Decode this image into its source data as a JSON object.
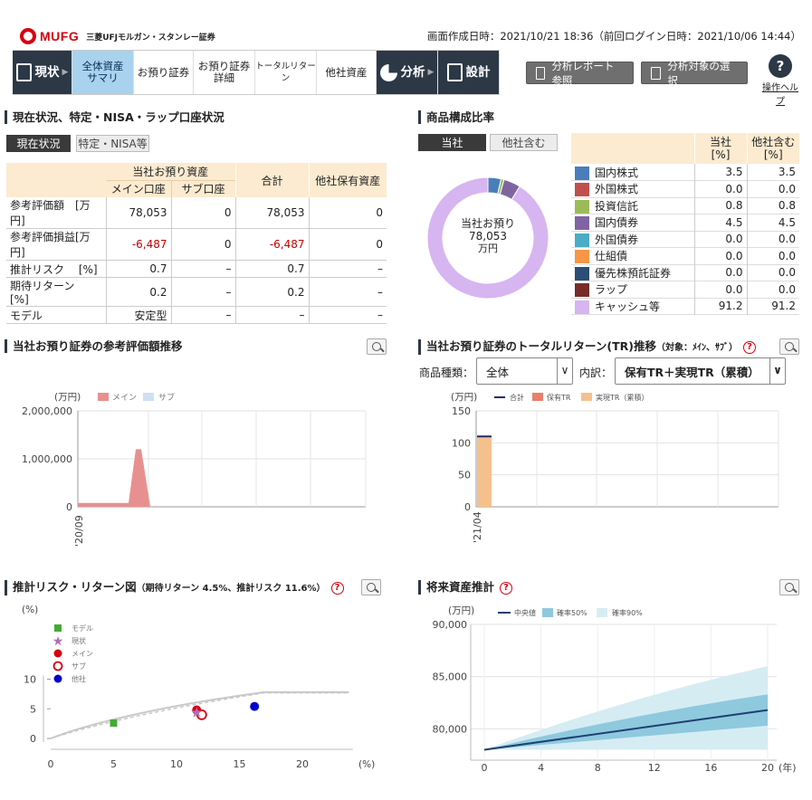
{
  "header": {
    "brand": "MUFG",
    "company": "三菱UFJモルガン・スタンレー証券",
    "created_text": "画面作成日時：2021/10/21 18:36（前回ログイン日時：2021/10/06 14:44）"
  },
  "nav": {
    "items": [
      {
        "label": "現状",
        "icon": "clipboard-icon"
      },
      {
        "label": "全体資産サマリ"
      },
      {
        "label": "お預り証券"
      },
      {
        "label": "お預り証券詳細"
      },
      {
        "label": "トータルリターン"
      },
      {
        "label": "他社資産"
      },
      {
        "label": "分析",
        "icon": "pie-chart-icon"
      },
      {
        "label": "設計",
        "icon": "document-icon"
      }
    ],
    "report_button": "分析レポート参照",
    "target_button": "分析対象の選択",
    "help_label": "操作ヘルプ",
    "help_symbol": "?"
  },
  "status": {
    "title": "現在状況、特定・NISA・ラップ口座状況",
    "tabs": [
      "現在状況",
      "特定・NISA等"
    ],
    "head_group": "当社お預り資産",
    "head_main": "メイン口座",
    "head_sub": "サブ口座",
    "head_total": "合計",
    "head_other": "他社保有資産",
    "rows": [
      {
        "label": "参考評価額　[万円]",
        "main": "78,053",
        "sub": "0",
        "total": "78,053",
        "other": "0"
      },
      {
        "label": "参考評価損益[万円]",
        "main": "-6,487",
        "sub": "0",
        "total": "-6,487",
        "other": "0"
      },
      {
        "label": "推計リスク　 [%]",
        "main": "0.7",
        "sub": "–",
        "total": "0.7",
        "other": "–"
      },
      {
        "label": "期待リターン　[%]",
        "main": "0.2",
        "sub": "–",
        "total": "0.2",
        "other": "–"
      },
      {
        "label": "モデル",
        "main": "安定型",
        "sub": "–",
        "total": "–",
        "other": "–"
      }
    ]
  },
  "composition": {
    "title": "商品構成比率",
    "tabs": [
      "当社",
      "他社含む"
    ],
    "center_line1": "当社お預り",
    "center_line2": "78,053",
    "center_line3": "万円",
    "head_self": "当社\n[%]",
    "head_all": "他社含む\n[%]",
    "rows": [
      {
        "name": "国内株式",
        "color": "#4a7ebb",
        "self": "3.5",
        "all": "3.5"
      },
      {
        "name": "外国株式",
        "color": "#c0504d",
        "self": "0.0",
        "all": "0.0"
      },
      {
        "name": "投資信託",
        "color": "#9bbb59",
        "self": "0.8",
        "all": "0.8"
      },
      {
        "name": "国内債券",
        "color": "#8064a2",
        "self": "4.5",
        "all": "4.5"
      },
      {
        "name": "外国債券",
        "color": "#4bacc6",
        "self": "0.0",
        "all": "0.0"
      },
      {
        "name": "仕組債",
        "color": "#f79646",
        "self": "0.0",
        "all": "0.0"
      },
      {
        "name": "優先株預託証券",
        "color": "#2c4d75",
        "self": "0.0",
        "all": "0.0"
      },
      {
        "name": "ラップ",
        "color": "#772c2a",
        "self": "0.0",
        "all": "0.0"
      },
      {
        "name": "キャッシュ等",
        "color": "#d7b5f0",
        "self": "91.2",
        "all": "91.2"
      }
    ]
  },
  "value_trend": {
    "title": "当社お預り証券の参考評価額推移",
    "unit": "(万円)",
    "legend_main": "メイン",
    "legend_sub": "サブ",
    "color_main": "#e89090",
    "color_sub": "#cfe0f3"
  },
  "tr_trend": {
    "title": "当社お預り証券のトータルリターン(TR)推移",
    "title_note": "（対象：ﾒｲﾝ、ｻﾌﾞ）",
    "product_label": "商品種類：",
    "product_value": "全体",
    "breakdown_label": "内訳：",
    "breakdown_value": "保有TR＋実現TR（累積）",
    "unit": "(万円)",
    "legend": [
      "合計",
      "保有TR",
      "実現TR（累積）"
    ]
  },
  "risk_return": {
    "title": "推計リスク・リターン図",
    "title_note": "（期待リターン 4.5%、推計リスク 11.6%）",
    "y_unit": "(%)",
    "x_unit": "(%)",
    "legend": [
      "モデル",
      "現状",
      "メイン",
      "サブ",
      "他社"
    ]
  },
  "future": {
    "title": "将来資産推計",
    "unit": "(万円)",
    "x_unit": "(年)",
    "legend": [
      "中央値",
      "確率50%",
      "確率90%"
    ]
  },
  "chart_data": [
    {
      "type": "pie",
      "categories": [
        "国内株式",
        "外国株式",
        "投資信託",
        "国内債券",
        "外国債券",
        "仕組債",
        "優先株預託証券",
        "ラップ",
        "キャッシュ等"
      ],
      "values": [
        3.5,
        0.0,
        0.8,
        4.5,
        0.0,
        0.0,
        0.0,
        0.0,
        91.2
      ],
      "colors": [
        "#4a7ebb",
        "#c0504d",
        "#9bbb59",
        "#8064a2",
        "#4bacc6",
        "#f79646",
        "#2c4d75",
        "#772c2a",
        "#d7b5f0"
      ]
    },
    {
      "type": "area",
      "ylabel": "(万円)",
      "ylim": [
        0,
        2000000
      ],
      "yticks": [
        "2,000,000",
        "1,000,000",
        "0"
      ],
      "ytick_values": [
        2000000,
        1000000,
        0
      ],
      "x_tick_labels": [
        "'20/09"
      ],
      "series": [
        {
          "name": "メイン",
          "x": [
            0,
            1,
            2,
            3,
            4,
            5
          ],
          "values": [
            80000,
            80000,
            80000,
            1200000,
            1200000,
            0
          ]
        }
      ]
    },
    {
      "type": "bar",
      "ylabel": "(万円)",
      "ylim": [
        0,
        150
      ],
      "yticks": [
        "150",
        "100",
        "50",
        "0"
      ],
      "ytick_values": [
        150,
        100,
        50,
        0
      ],
      "categories": [
        "'21/04"
      ],
      "series": [
        {
          "name": "合計",
          "values": [
            110
          ]
        },
        {
          "name": "保有TR",
          "values": [
            0
          ]
        },
        {
          "name": "実現TR（累積）",
          "values": [
            110
          ]
        }
      ]
    },
    {
      "type": "scatter",
      "xlim": [
        0,
        25
      ],
      "ylim": [
        0,
        10
      ],
      "xticks": [
        "0",
        "5",
        "10",
        "15",
        "20"
      ],
      "xtick_values": [
        0,
        5,
        10,
        15,
        20
      ],
      "yticks": [
        "10",
        "5",
        "0"
      ],
      "ytick_values": [
        10,
        5,
        0
      ],
      "series": [
        {
          "name": "モデル",
          "x": [
            5.0
          ],
          "y": [
            2.6
          ]
        },
        {
          "name": "現状",
          "x": [
            11.6
          ],
          "y": [
            4.5
          ]
        },
        {
          "name": "メイン",
          "x": [
            11.6
          ],
          "y": [
            4.8
          ]
        },
        {
          "name": "サブ",
          "x": [
            12.0
          ],
          "y": [
            4.0
          ]
        },
        {
          "name": "他社",
          "x": [
            16.2
          ],
          "y": [
            5.4
          ]
        }
      ]
    },
    {
      "type": "line",
      "xlabel": "(年)",
      "ylabel": "(万円)",
      "xlim": [
        0,
        20
      ],
      "ylim": [
        77000,
        90000
      ],
      "xticks": [
        "0",
        "4",
        "8",
        "12",
        "16",
        "20"
      ],
      "xtick_values": [
        0,
        4,
        8,
        12,
        16,
        20
      ],
      "yticks": [
        "90,000",
        "85,000",
        "80,000"
      ],
      "ytick_values": [
        90000,
        85000,
        80000
      ],
      "series": [
        {
          "name": "中央値",
          "x": [
            0,
            20
          ],
          "values": [
            78000,
            81800
          ]
        },
        {
          "name": "確率50%",
          "x": [
            0,
            20
          ],
          "upper": [
            78000,
            83300
          ],
          "lower": [
            78000,
            80300
          ]
        },
        {
          "name": "確率90%",
          "x": [
            0,
            20
          ],
          "upper": [
            78000,
            86000
          ],
          "lower": [
            78000,
            78000
          ]
        }
      ]
    }
  ]
}
